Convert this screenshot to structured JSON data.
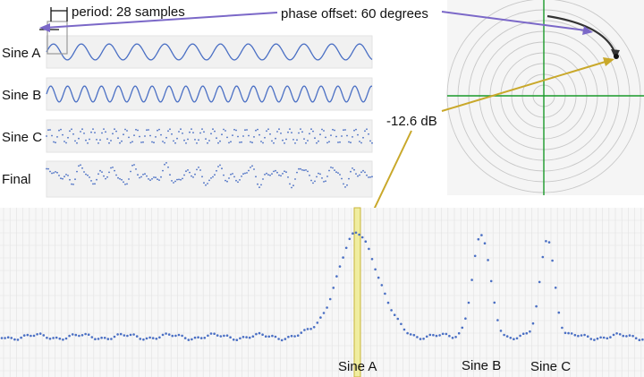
{
  "annotations": {
    "period": "period: 28 samples",
    "phase": "phase offset: 60 degrees",
    "db": "-12.6 dB"
  },
  "waves": [
    {
      "label": "Sine A",
      "period": 28,
      "amp": 0.45,
      "dotted": false
    },
    {
      "label": "Sine B",
      "period": 17,
      "amp": 0.45,
      "dotted": false
    },
    {
      "label": "Sine C",
      "period": 11,
      "amp": 0.4,
      "dotted": true
    },
    {
      "label": "Final",
      "period": 0,
      "amp": 0.0,
      "dotted": true
    }
  ],
  "spectrum_labels": [
    "Sine A",
    "Sine B",
    "Sine C"
  ],
  "colors": {
    "wave": "#4a6fc4",
    "dots": "#4a6fc4",
    "panel": "#f1f1f1",
    "grid": "#e0e0e0",
    "purple_arrow": "#7b68c8",
    "gold_arrow": "#c9a82a",
    "axis_green": "#1a9a2a",
    "highlight": "#f0eda0"
  },
  "polar": {
    "rings": 9,
    "phase_degrees": 60,
    "magnitude_db": -12.6
  },
  "chart_data": {
    "type": "scatter",
    "title": "",
    "xlabel": "",
    "ylabel": "",
    "peak_labels": [
      "Sine A",
      "Sine B",
      "Sine C"
    ],
    "grid": true
  }
}
